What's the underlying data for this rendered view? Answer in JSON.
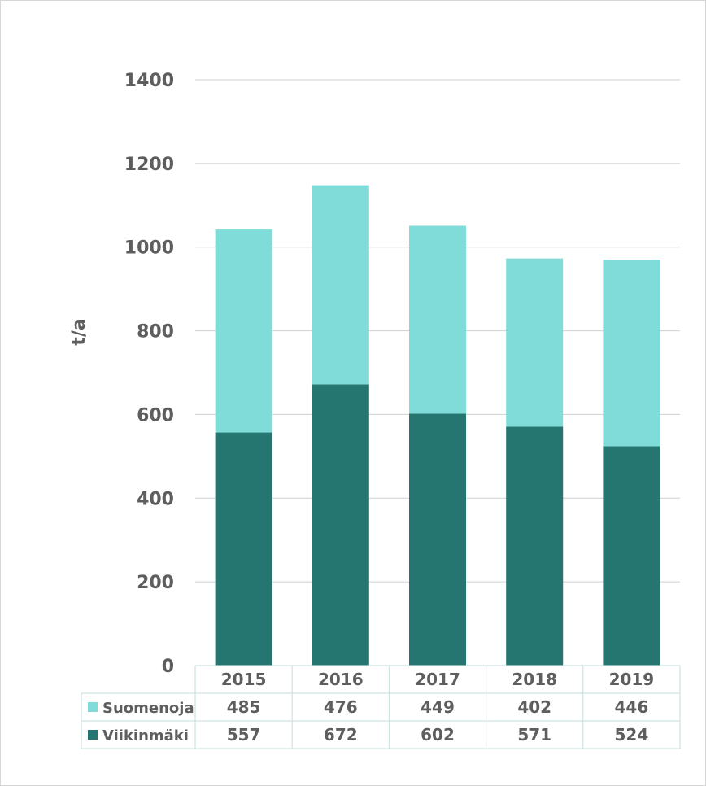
{
  "chart_data": {
    "type": "bar",
    "stacked": true,
    "categories": [
      "2015",
      "2016",
      "2017",
      "2018",
      "2019"
    ],
    "series": [
      {
        "name": "Viikinmäki",
        "values": [
          557,
          672,
          602,
          571,
          524
        ],
        "color": "#257570"
      },
      {
        "name": "Suomenoja",
        "values": [
          485,
          476,
          449,
          402,
          446
        ],
        "color": "#7fdcd8"
      }
    ],
    "table_rows": [
      {
        "name": "Suomenoja",
        "values": [
          "485",
          "476",
          "449",
          "402",
          "446"
        ],
        "color": "#7fdcd8"
      },
      {
        "name": "Viikinmäki",
        "values": [
          "557",
          "672",
          "602",
          "571",
          "524"
        ],
        "color": "#257570"
      }
    ],
    "ylabel": "t/a",
    "ylim": [
      0,
      1400
    ],
    "yticks": [
      "0",
      "200",
      "400",
      "600",
      "800",
      "1000",
      "1200",
      "1400"
    ],
    "grid": true,
    "legend": "data-table"
  }
}
